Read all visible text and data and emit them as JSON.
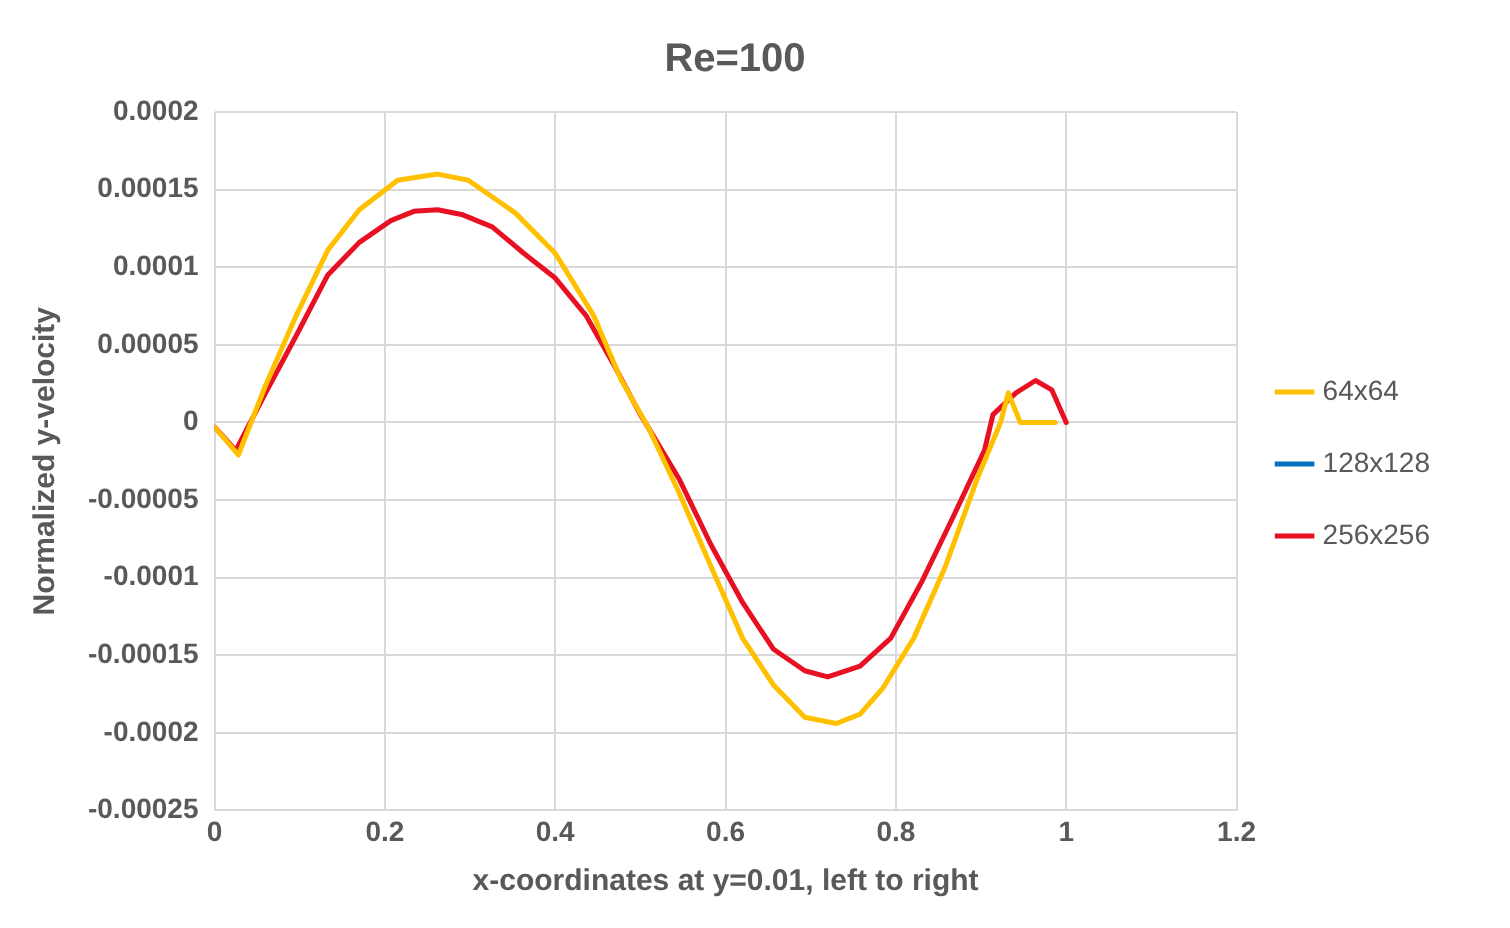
{
  "chart_data": {
    "type": "line",
    "title": "Re=100",
    "xlabel": "x-coordinates at y=0.01, left to right",
    "ylabel": "Normalized y-velocity",
    "xlim": [
      0,
      1.2
    ],
    "xticks": [
      0,
      0.2,
      0.4,
      0.6,
      0.8,
      1,
      1.2
    ],
    "ylim": [
      -0.00025,
      0.0002
    ],
    "yticks": [
      -0.00025,
      -0.0002,
      -0.00015,
      -0.0001,
      {
        "value": -5e-05,
        "label": "-0.00005"
      },
      0,
      {
        "value": 5e-05,
        "label": "0.00005"
      },
      0.0001,
      0.00015,
      0.0002
    ],
    "grid": true,
    "legend": "right",
    "marker": "none",
    "line_style": "solid",
    "series": [
      {
        "name": "64x64",
        "color": "#ffc000",
        "x": [
          0,
          0.028,
          0.06,
          0.096,
          0.133,
          0.17,
          0.215,
          0.262,
          0.298,
          0.353,
          0.4,
          0.445,
          0.477,
          0.51,
          0.546,
          0.583,
          0.62,
          0.656,
          0.693,
          0.73,
          0.758,
          0.785,
          0.821,
          0.858,
          0.895,
          0.923,
          0.932,
          0.946,
          0.987
        ],
        "values": [
          -3e-06,
          -2.1e-05,
          2.4e-05,
          6.9e-05,
          0.000111,
          0.000137,
          0.000156,
          0.00016,
          0.000156,
          0.000135,
          0.000109,
          6.9e-05,
          2.8e-05,
          -4e-06,
          -4.6e-05,
          -9.3e-05,
          -0.000139,
          -0.000169,
          -0.00019,
          -0.000194,
          -0.000188,
          -0.000171,
          -0.000139,
          -9.3e-05,
          -3.7e-05,
          0,
          1.9e-05,
          0,
          0
        ]
      },
      {
        "name": "128x128",
        "color": "#0070c0"
      },
      {
        "name": "256x256",
        "color": "#e81123",
        "x": [
          0,
          0.025,
          0.06,
          0.096,
          0.133,
          0.17,
          0.207,
          0.234,
          0.262,
          0.29,
          0.326,
          0.363,
          0.4,
          0.436,
          0.468,
          0.5,
          0.51,
          0.546,
          0.583,
          0.62,
          0.656,
          0.693,
          0.72,
          0.758,
          0.794,
          0.831,
          0.868,
          0.904,
          0.914,
          0.941,
          0.964,
          0.983,
          1
        ],
        "values": [
          -3e-06,
          -1.8e-05,
          1.9e-05,
          5.6e-05,
          9.5e-05,
          0.000116,
          0.00013,
          0.000136,
          0.000137,
          0.000134,
          0.000126,
          0.000109,
          9.3e-05,
          6.9e-05,
          3.8e-05,
          5e-06,
          -4e-06,
          -3.7e-05,
          -7.9e-05,
          -0.000116,
          -0.000146,
          -0.00016,
          -0.000164,
          -0.000157,
          -0.000139,
          -0.000102,
          -6e-05,
          -1.8e-05,
          5e-06,
          1.9e-05,
          2.7e-05,
          2.1e-05,
          0
        ]
      }
    ]
  }
}
